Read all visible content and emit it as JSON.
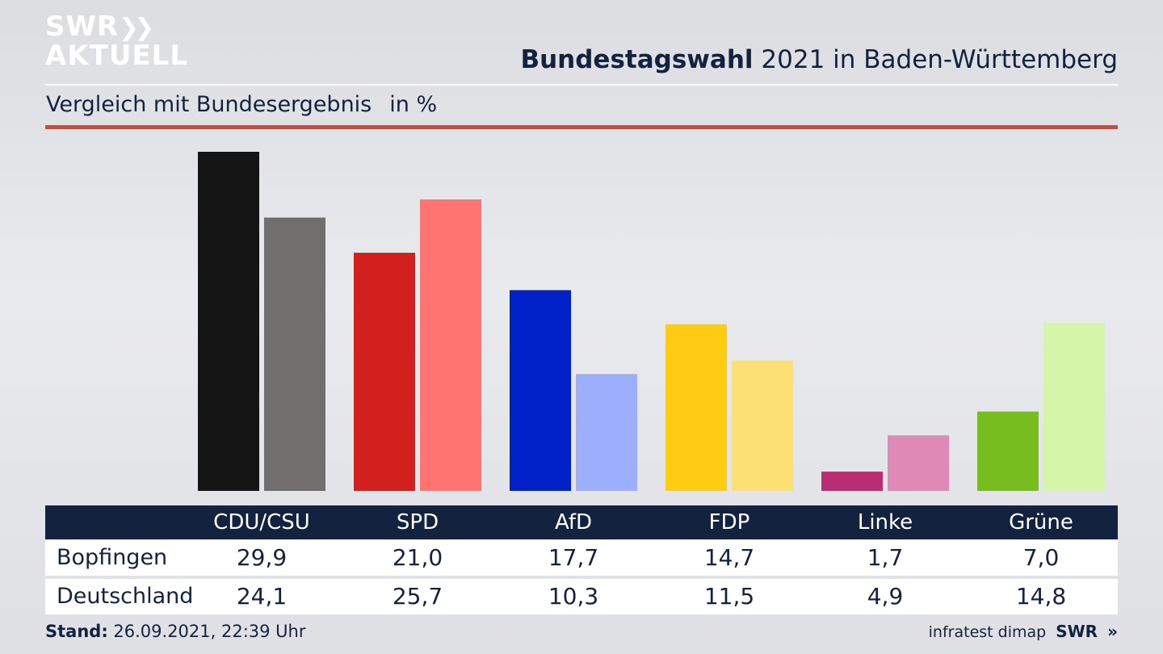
{
  "header": {
    "logo_line1": "SWR",
    "logo_line2": "AKTUELL",
    "title_bold": "Bundestagswahl",
    "title_rest": " 2021 in Baden-Württemberg",
    "subtitle": "Vergleich mit Bundesergebnis",
    "unit": "in %"
  },
  "chart_data": {
    "type": "bar",
    "categories": [
      "CDU/CSU",
      "SPD",
      "AfD",
      "FDP",
      "Linke",
      "Grüne"
    ],
    "series": [
      {
        "name": "Bopfingen",
        "values": [
          29.9,
          21.0,
          17.7,
          14.7,
          1.7,
          7.0
        ],
        "labels": [
          "29,9",
          "21,0",
          "17,7",
          "14,7",
          "1,7",
          "7,0"
        ]
      },
      {
        "name": "Deutschland",
        "values": [
          24.1,
          25.7,
          10.3,
          11.5,
          4.9,
          14.8
        ],
        "labels": [
          "24,1",
          "25,7",
          "10,3",
          "11,5",
          "4,9",
          "14,8"
        ]
      }
    ],
    "colors": {
      "Bopfingen": [
        "#141414",
        "#d41f1f",
        "#0020c8",
        "#ffcc14",
        "#bb2d73",
        "#78bd1e"
      ],
      "Deutschland": [
        "#706f6d",
        "#ff7470",
        "#9eaeff",
        "#fde074",
        "#de89b6",
        "#d5f5a9"
      ]
    },
    "ylim": [
      0,
      29.9
    ],
    "grid": false,
    "legend": "table-below"
  },
  "footer": {
    "stand_label": "Stand:",
    "stand_value": " 26.09.2021, 22:39 Uhr",
    "source": "infratest dimap",
    "brand": "SWR"
  }
}
